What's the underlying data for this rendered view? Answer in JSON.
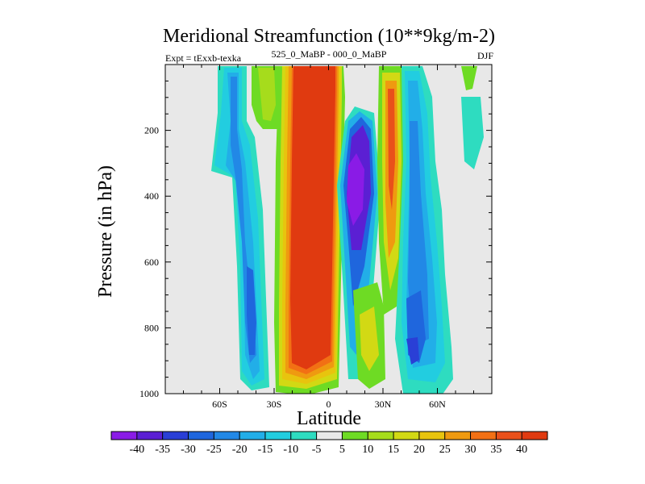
{
  "chart_data": {
    "type": "heatmap",
    "title": "Meridional Streamfunction (10**9kg/m-2)",
    "subtitle_left": "Expt = tExxb-texka",
    "subtitle_center": "525_0_MaBP - 000_0_MaBP",
    "subtitle_right": "DJF",
    "xlabel": "Latitude",
    "ylabel": "Pressure (in hPa)",
    "xlim": [
      -90,
      90
    ],
    "ylim": [
      1000,
      0
    ],
    "x_ticks": [
      {
        "value": -60,
        "label": "60S"
      },
      {
        "value": -30,
        "label": "30S"
      },
      {
        "value": 0,
        "label": "0"
      },
      {
        "value": 30,
        "label": "30N"
      },
      {
        "value": 60,
        "label": "60N"
      }
    ],
    "y_ticks": [
      {
        "value": 200,
        "label": "200"
      },
      {
        "value": 400,
        "label": "400"
      },
      {
        "value": 600,
        "label": "600"
      },
      {
        "value": 800,
        "label": "800"
      },
      {
        "value": 1000,
        "label": "1000"
      }
    ],
    "colorbar": {
      "levels": [
        "-40",
        "-35",
        "-30",
        "-25",
        "-20",
        "-15",
        "-10",
        "-5",
        "5",
        "10",
        "15",
        "20",
        "25",
        "30",
        "35",
        "40"
      ],
      "colors": [
        "#8a1be6",
        "#5b1fd3",
        "#2a3fd6",
        "#1f66dd",
        "#2288e6",
        "#22aee8",
        "#22cde0",
        "#2edcc0",
        "#e8e8e8",
        "#6edb24",
        "#a6dc1c",
        "#d2d914",
        "#e8c40e",
        "#ef9a10",
        "#f27014",
        "#e9501a",
        "#e03a10"
      ]
    },
    "features": [
      {
        "name": "northern-low-lat-positive",
        "lat_range": [
          -12,
          7
        ],
        "pressure_range": [
          0,
          1000
        ],
        "value": 40
      },
      {
        "name": "southern-positive-tongue",
        "lat_range": [
          -22,
          -12
        ],
        "pressure_range": [
          0,
          990
        ],
        "value": 20
      },
      {
        "name": "equatorial-negative-cell",
        "lat_range": [
          5,
          20
        ],
        "pressure_range": [
          150,
          950
        ],
        "value": -35
      },
      {
        "name": "subtropical-positive-band",
        "lat_range": [
          22,
          33
        ],
        "pressure_range": [
          0,
          850
        ],
        "value": 25
      },
      {
        "name": "northern-negative-cell",
        "lat_range": [
          33,
          55
        ],
        "pressure_range": [
          100,
          1000
        ],
        "value": -25
      },
      {
        "name": "southern-negative-cell",
        "lat_range": [
          -55,
          -35
        ],
        "pressure_range": [
          0,
          1000
        ],
        "value": -20
      },
      {
        "name": "high-north-positive",
        "lat_range": [
          69,
          76
        ],
        "pressure_range": [
          0,
          80
        ],
        "value": 10
      }
    ]
  }
}
